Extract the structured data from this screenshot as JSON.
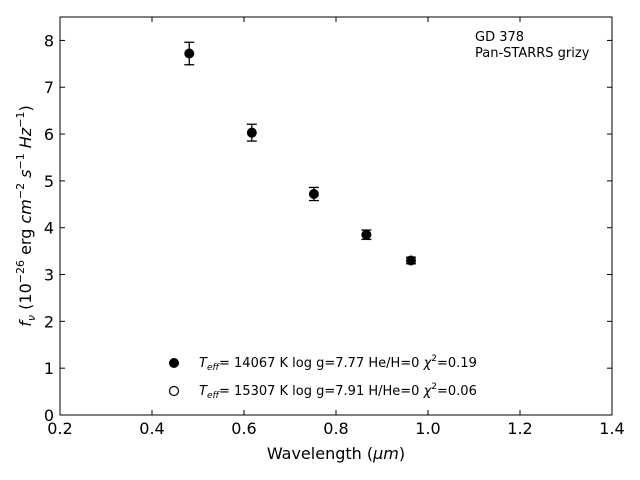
{
  "chart_data": {
    "type": "scatter",
    "xlabel": "Wavelength (",
    "xlabel_unit": "μm",
    "xlabel_close": ")",
    "ylabel_sym": "f",
    "ylabel_sub": "ν",
    "ylabel_p1": " (10",
    "ylabel_exp1": "−26",
    "ylabel_p2": " erg ",
    "ylabel_cm": "cm",
    "ylabel_exp2": "−2",
    "ylabel_s": " s",
    "ylabel_exp3": "−1",
    "ylabel_hz": " Hz",
    "ylabel_exp4": "−1",
    "ylabel_close": ")",
    "xlim": [
      0.2,
      1.4
    ],
    "ylim": [
      0,
      8.5
    ],
    "xticks": [
      "0.2",
      "0.4",
      "0.6",
      "0.8",
      "1.0",
      "1.2",
      "1.4"
    ],
    "yticks": [
      "0",
      "1",
      "2",
      "3",
      "4",
      "5",
      "6",
      "7",
      "8"
    ],
    "xtick_values": [
      0.2,
      0.4,
      0.6,
      0.8,
      1.0,
      1.2,
      1.4
    ],
    "ytick_values": [
      0,
      1,
      2,
      3,
      4,
      5,
      6,
      7,
      8
    ],
    "annotation": [
      "GD 378",
      "Pan-STARRS grizy"
    ],
    "series": [
      {
        "marker": "filled",
        "color": "#000000",
        "x": [
          0.481,
          0.617,
          0.752,
          0.866,
          0.963
        ],
        "y": [
          7.72,
          6.03,
          4.72,
          3.85,
          3.3
        ],
        "yerr": [
          0.24,
          0.18,
          0.14,
          0.1,
          0.07
        ]
      }
    ],
    "legend": {
      "placement": "lower-left",
      "entries": [
        {
          "marker": "filled",
          "label_T": "T",
          "label_sub": "eff",
          "label_rest": "= 14067 K  log g=7.77  He/H=0  ",
          "label_chi": "χ",
          "label_chi_exp": "2",
          "label_end": "=0.19"
        },
        {
          "marker": "open",
          "label_T": "T",
          "label_sub": "eff",
          "label_rest": "= 15307 K  log g=7.91  H/He=0  ",
          "label_chi": "χ",
          "label_chi_exp": "2",
          "label_end": "=0.06"
        }
      ]
    }
  }
}
